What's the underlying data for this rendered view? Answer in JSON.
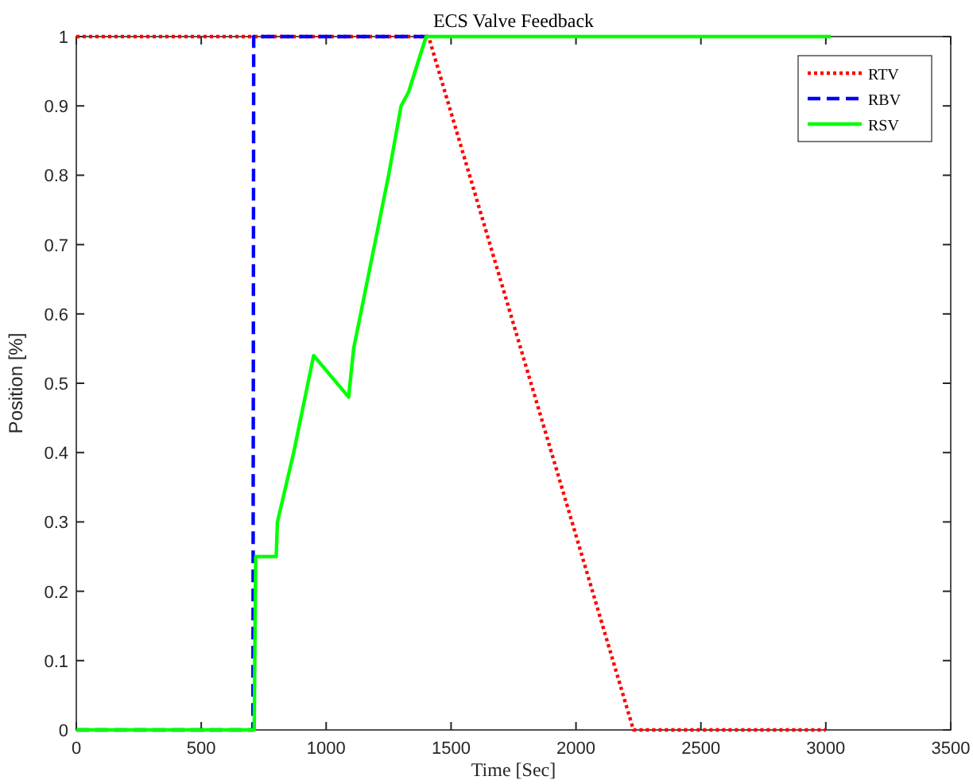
{
  "chart_data": {
    "type": "line",
    "title": "ECS Valve Feedback",
    "xlabel": "Time [Sec]",
    "ylabel": "Position [%]",
    "xlim": [
      0,
      3500
    ],
    "xticks": [
      0,
      500,
      1000,
      1500,
      2000,
      2500,
      3000,
      3500
    ],
    "ylim": [
      0,
      1
    ],
    "yticks": [
      0,
      0.1,
      0.2,
      0.3,
      0.4,
      0.5,
      0.6,
      0.7,
      0.8,
      0.9,
      1
    ],
    "grid": false,
    "legend": "top right",
    "series": [
      {
        "name": "RTV",
        "color": "#ff0000",
        "line_style": "dotted",
        "x": [
          0,
          1410,
          2230,
          3000
        ],
        "values": [
          1,
          1,
          0,
          0
        ]
      },
      {
        "name": "RBV",
        "color": "#0000ff",
        "line_style": "dashed",
        "x": [
          0,
          707,
          710,
          1410
        ],
        "values": [
          0,
          0,
          1,
          1
        ]
      },
      {
        "name": "RSV",
        "color": "#00ff00",
        "line_style": "solid",
        "x": [
          0,
          712,
          718,
          800,
          805,
          870,
          950,
          1090,
          1110,
          1250,
          1300,
          1330,
          1400,
          3020
        ],
        "values": [
          0,
          0,
          0.25,
          0.25,
          0.3,
          0.4,
          0.54,
          0.48,
          0.55,
          0.8,
          0.9,
          0.92,
          1,
          1
        ]
      }
    ]
  }
}
